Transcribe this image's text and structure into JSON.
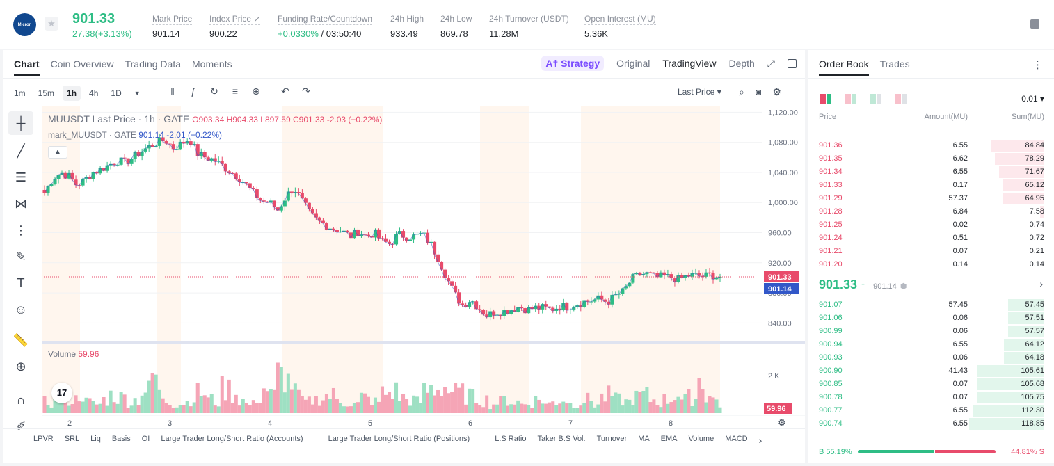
{
  "header": {
    "logo_text": "Micron",
    "price": "901.33",
    "change": "27.38(+3.13%)",
    "stats": [
      {
        "label": "Mark Price",
        "value": "901.14"
      },
      {
        "label": "Index Price ↗",
        "value": "900.22"
      },
      {
        "label": "Funding Rate/Countdown",
        "value_green": "+0.0330%",
        "value": " / 03:50:40"
      },
      {
        "label": "24h High",
        "value": "933.49"
      },
      {
        "label": "24h Low",
        "value": "869.78"
      },
      {
        "label": "24h Turnover (USDT)",
        "value": "11.28M"
      },
      {
        "label": "Open Interest (MU)",
        "value": "5.36K"
      }
    ]
  },
  "chart_tabs": [
    "Chart",
    "Coin Overview",
    "Trading Data",
    "Moments"
  ],
  "views": {
    "strategy": "A† Strategy",
    "original": "Original",
    "tradingview": "TradingView",
    "depth": "Depth"
  },
  "intervals": [
    "1m",
    "15m",
    "1h",
    "4h",
    "1D"
  ],
  "last_price_select": "Last Price",
  "legend": {
    "symbol": "MUUSDT Last Price · 1h · GATE",
    "ohlc": "O903.34  H904.33  L897.59  C901.33  -2.03  (−0.22%)",
    "mark_label": "mark_MUUSDT · GATE",
    "mark_values": "901.14  -2.01  (−0.22%)",
    "volume_label": "Volume",
    "volume_value": "59.96"
  },
  "colors": {
    "up": "#2ebd85",
    "down": "#e84b6b",
    "mark": "#3257c8"
  },
  "chart_data": {
    "type": "candlestick",
    "y_ticks": [
      "1,120.00",
      "1,080.00",
      "1,040.00",
      "1,000.00",
      "960.00",
      "920.00",
      "880.00",
      "840.00"
    ],
    "y_values": [
      1120,
      1080,
      1040,
      1000,
      960,
      920,
      880,
      840
    ],
    "ylim": [
      820,
      1125
    ],
    "x_ticks": [
      "2",
      "3",
      "4",
      "5",
      "6",
      "7",
      "8"
    ],
    "last_price_label": "901.33",
    "mark_price_label": "901.14",
    "volume_tick": "2 K",
    "volume_label_value": "59.96",
    "close_path": [
      1013,
      1032,
      1040,
      1035,
      1023,
      1030,
      1040,
      1044,
      1050,
      1056,
      1053,
      1060,
      1068,
      1074,
      1080,
      1083,
      1073,
      1078,
      1085,
      1065,
      1060,
      1057,
      1050,
      1042,
      1035,
      1025,
      1012,
      1002,
      1000,
      990,
      1008,
      1020,
      1002,
      985,
      975,
      970,
      965,
      962,
      955,
      962,
      955,
      960,
      948,
      945,
      958,
      955,
      955,
      958,
      945,
      925,
      900,
      878,
      863,
      872,
      860,
      850,
      855,
      855,
      858,
      862,
      858,
      860,
      860,
      858,
      862,
      862,
      865,
      868,
      870,
      872,
      868,
      876,
      882,
      898,
      905,
      905,
      900,
      902,
      900,
      898,
      903,
      903,
      902,
      904,
      901
    ],
    "volume_profile": [
      0.25,
      0.35,
      0.2,
      0.3,
      0.45,
      0.25,
      0.2,
      0.3,
      0.4,
      0.35,
      0.25,
      0.3,
      0.5,
      0.85,
      0.4,
      0.3,
      0.2,
      0.25,
      0.35,
      0.45,
      0.3,
      0.25,
      0.55,
      0.45,
      0.3,
      0.2,
      0.35,
      0.55,
      0.4,
      0.85,
      0.7,
      0.45,
      0.25,
      0.3,
      0.35,
      0.4,
      0.3,
      0.25,
      0.2,
      0.35,
      0.3,
      0.25,
      0.45,
      0.5,
      0.35,
      0.3,
      0.25,
      0.5,
      0.55,
      0.6,
      0.5,
      0.45,
      0.4,
      0.35,
      0.3,
      0.2,
      0.25,
      0.3,
      0.25,
      0.2,
      0.25,
      0.3,
      0.2,
      0.25,
      0.3,
      0.2,
      0.25,
      0.3,
      0.2,
      0.35,
      0.4,
      0.3,
      0.25,
      0.35,
      0.4,
      0.3,
      0.25,
      0.3,
      0.45,
      0.3,
      0.35,
      0.75,
      0.4,
      0.3,
      0.2
    ]
  },
  "indicators": [
    "LPVR",
    "SRL",
    "Liq",
    "Basis",
    "OI",
    "Large Trader Long/Short Ratio (Accounts)",
    "Large Trader Long/Short Ratio (Positions)",
    "L.S Ratio",
    "Taker B.S Vol.",
    "Turnover",
    "MA",
    "EMA",
    "Volume",
    "MACD"
  ],
  "orderbook": {
    "tabs": [
      "Order Book",
      "Trades"
    ],
    "precision": "0.01",
    "headers": [
      "Price",
      "Amount(MU)",
      "Sum(MU)"
    ],
    "asks": [
      {
        "price": "901.36",
        "amount": "6.55",
        "sum": "84.84",
        "depth": 0.71
      },
      {
        "price": "901.35",
        "amount": "6.62",
        "sum": "78.29",
        "depth": 0.66
      },
      {
        "price": "901.34",
        "amount": "6.55",
        "sum": "71.67",
        "depth": 0.6
      },
      {
        "price": "901.33",
        "amount": "0.17",
        "sum": "65.12",
        "depth": 0.55
      },
      {
        "price": "901.29",
        "amount": "57.37",
        "sum": "64.95",
        "depth": 0.55
      },
      {
        "price": "901.28",
        "amount": "6.84",
        "sum": "7.58",
        "depth": 0.06
      },
      {
        "price": "901.25",
        "amount": "0.02",
        "sum": "0.74",
        "depth": 0.01
      },
      {
        "price": "901.24",
        "amount": "0.51",
        "sum": "0.72",
        "depth": 0.01
      },
      {
        "price": "901.21",
        "amount": "0.07",
        "sum": "0.21",
        "depth": 0.0
      },
      {
        "price": "901.20",
        "amount": "0.14",
        "sum": "0.14",
        "depth": 0.0
      }
    ],
    "mid_price": "901.33",
    "mid_arrow": "↑",
    "mid_mark": "901.14",
    "bids": [
      {
        "price": "901.07",
        "amount": "57.45",
        "sum": "57.45",
        "depth": 0.48
      },
      {
        "price": "901.06",
        "amount": "0.06",
        "sum": "57.51",
        "depth": 0.48
      },
      {
        "price": "900.99",
        "amount": "0.06",
        "sum": "57.57",
        "depth": 0.48
      },
      {
        "price": "900.94",
        "amount": "6.55",
        "sum": "64.12",
        "depth": 0.54
      },
      {
        "price": "900.93",
        "amount": "0.06",
        "sum": "64.18",
        "depth": 0.54
      },
      {
        "price": "900.90",
        "amount": "41.43",
        "sum": "105.61",
        "depth": 0.89
      },
      {
        "price": "900.85",
        "amount": "0.07",
        "sum": "105.68",
        "depth": 0.89
      },
      {
        "price": "900.78",
        "amount": "0.07",
        "sum": "105.75",
        "depth": 0.89
      },
      {
        "price": "900.77",
        "amount": "6.55",
        "sum": "112.30",
        "depth": 0.95
      },
      {
        "price": "900.74",
        "amount": "6.55",
        "sum": "118.85",
        "depth": 1.0
      }
    ],
    "buy_ratio": "B 55.19%",
    "sell_ratio": "44.81% S",
    "buy_fraction": 0.5519
  }
}
